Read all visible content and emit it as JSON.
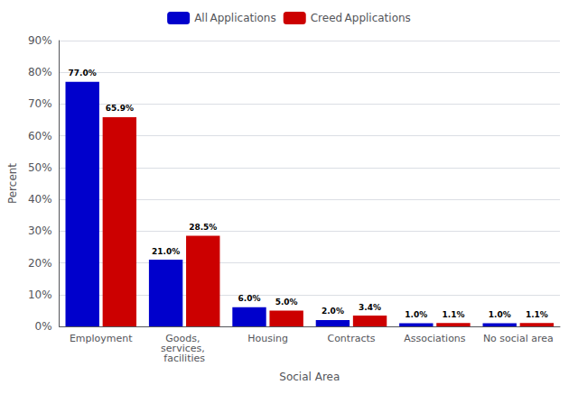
{
  "chart_data": {
    "type": "bar",
    "xlabel": "Social Area",
    "ylabel": "Percent",
    "categories": [
      "Employment",
      "Goods, services, facilities",
      "Housing",
      "Contracts",
      "Associations",
      "No social area"
    ],
    "series": [
      {
        "name": "All Applications",
        "color": "#0000cc",
        "values": [
          77.0,
          21.0,
          6.0,
          2.0,
          1.0,
          1.0
        ],
        "value_labels": [
          "77.0%",
          "21.0%",
          "6.0%",
          "2.0%",
          "1.0%",
          "1.0%"
        ]
      },
      {
        "name": "Creed Applications",
        "color": "#cc0000",
        "values": [
          65.9,
          28.5,
          5.0,
          3.4,
          1.1,
          1.1
        ],
        "value_labels": [
          "65.9%",
          "28.5%",
          "5.0%",
          "3.4%",
          "1.1%",
          "1.1%"
        ]
      }
    ],
    "ylim": [
      0,
      90
    ],
    "yticks": [
      {
        "value": 0,
        "label": "0%"
      },
      {
        "value": 10,
        "label": "10%"
      },
      {
        "value": 20,
        "label": "20%"
      },
      {
        "value": 30,
        "label": "30%"
      },
      {
        "value": 40,
        "label": "40%"
      },
      {
        "value": 50,
        "label": "50%"
      },
      {
        "value": 60,
        "label": "60%"
      },
      {
        "value": 70,
        "label": "70%"
      },
      {
        "value": 80,
        "label": "80%"
      },
      {
        "value": 90,
        "label": "90%"
      }
    ],
    "grid": true,
    "legend": "top",
    "data_labels": true
  }
}
